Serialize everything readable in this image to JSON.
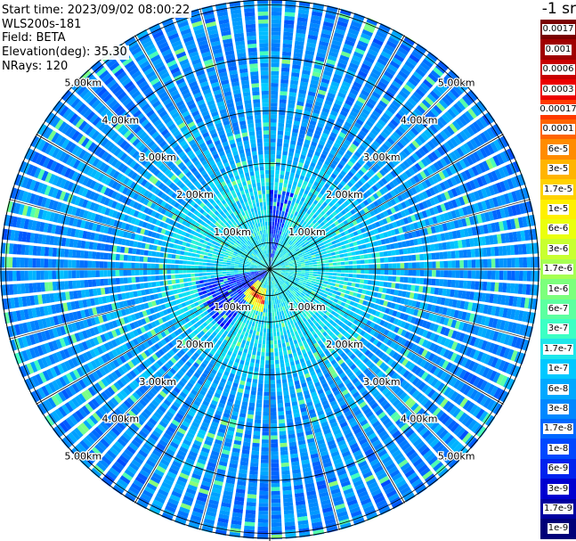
{
  "info": {
    "start": "Start time: 2023/09/02 08:00:22",
    "instrument": "WLS200s-181",
    "field": "Field: BETA",
    "elevation": "Elevation(deg): 35.30",
    "nrays": "NRays: 120"
  },
  "colorbar": {
    "title": "-1 sr",
    "ticks": [
      "0.0017",
      "0.001",
      "0.0006",
      "0.0003",
      "0.00017",
      "0.0001",
      "6e-5",
      "3e-5",
      "1.7e-5",
      "1e-5",
      "6e-6",
      "3e-6",
      "1.7e-6",
      "1e-6",
      "6e-7",
      "3e-7",
      "1.7e-7",
      "1e-7",
      "6e-8",
      "3e-8",
      "1.7e-8",
      "1e-8",
      "6e-9",
      "3e-9",
      "1.7e-9",
      "1e-9"
    ],
    "colors": [
      "#7a0000",
      "#a00000",
      "#c80000",
      "#ec0000",
      "#ff3a00",
      "#ff6400",
      "#ff8c00",
      "#ffb400",
      "#ffd200",
      "#fff000",
      "#eaff0c",
      "#c8ff30",
      "#a6ff52",
      "#7cff7c",
      "#5cffa0",
      "#3cffc4",
      "#1ee6ea",
      "#00c8ff",
      "#00a8ff",
      "#0088ff",
      "#0068ff",
      "#0048ff",
      "#0022ee",
      "#0000d0",
      "#0000a0",
      "#000078"
    ]
  },
  "chart_data": {
    "type": "ppi",
    "title": "",
    "field": "BETA",
    "nrays": 120,
    "elevation_deg": 35.3,
    "range_rings_km": [
      0.5,
      1.0,
      2.0,
      3.0,
      4.0,
      5.0
    ],
    "ring_labels": [
      "1.00km",
      "2.00km",
      "3.00km",
      "4.00km",
      "5.00km"
    ],
    "spoke_angles_deg": [
      0,
      30,
      60,
      90,
      120,
      150,
      180,
      210,
      240,
      270,
      300,
      330
    ],
    "radial_reference_lines_deg": [
      15,
      45,
      75,
      105,
      135,
      165,
      195,
      225,
      255,
      285,
      315,
      345
    ],
    "color_scale": "log",
    "range_min": 1e-09,
    "range_max": 0.0017,
    "features": [
      {
        "name": "near-range high backscatter arc",
        "azimuth_deg": [
          190,
          225
        ],
        "range_km": [
          0.3,
          0.9
        ],
        "max_value": 0.0017
      },
      {
        "name": "low backscatter wedge north",
        "azimuth_deg": [
          0,
          18
        ],
        "range_km": [
          0.0,
          1.5
        ],
        "value": 1e-08
      },
      {
        "name": "low backscatter wedge south-west",
        "azimuth_deg": [
          215,
          260
        ],
        "range_km": [
          0.0,
          1.4
        ],
        "value": 1e-08
      }
    ]
  }
}
